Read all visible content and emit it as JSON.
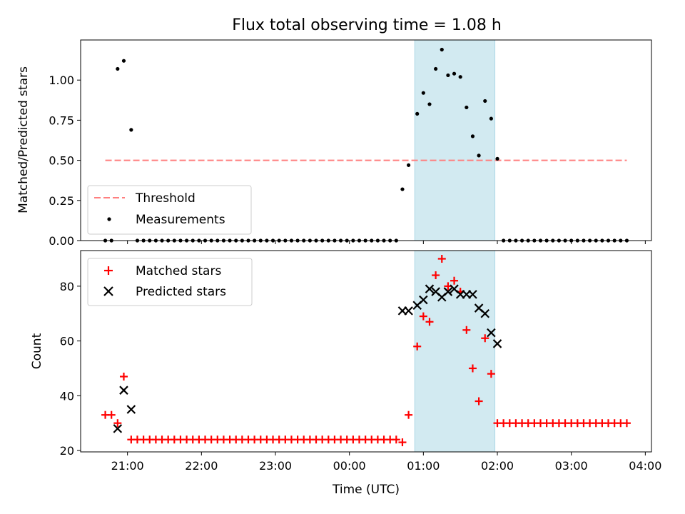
{
  "title": "Flux total observing time = 1.08 h",
  "colors": {
    "threshold": "#ff7f7f",
    "measurements": "#000000",
    "matched": "#ff0000",
    "predicted": "#000000",
    "shade": "#add8e6"
  },
  "chart_data": [
    {
      "type": "scatter",
      "ylabel": "Matched/Predicted stars",
      "ylim": [
        0,
        1.25
      ],
      "yticks": [
        0.0,
        0.25,
        0.5,
        0.75,
        1.0
      ],
      "ytick_labels": [
        "0.00",
        "0.25",
        "0.50",
        "0.75",
        "1.00"
      ],
      "legend_position": "lower-left",
      "threshold": {
        "name": "Threshold",
        "value": 0.5,
        "x_range": [
          "20:42",
          "03:45"
        ]
      },
      "shaded_interval": [
        "00:53",
        "01:58"
      ],
      "series": [
        {
          "name": "Measurements",
          "points": [
            [
              "20:42",
              0.0
            ],
            [
              "20:47",
              0.0
            ],
            [
              "20:52",
              1.07
            ],
            [
              "20:57",
              1.12
            ],
            [
              "21:03",
              0.69
            ],
            [
              "21:08",
              0.0
            ],
            [
              "21:13",
              0.0
            ],
            [
              "21:18",
              0.0
            ],
            [
              "21:23",
              0.0
            ],
            [
              "21:28",
              0.0
            ],
            [
              "21:33",
              0.0
            ],
            [
              "21:38",
              0.0
            ],
            [
              "21:43",
              0.0
            ],
            [
              "21:48",
              0.0
            ],
            [
              "21:53",
              0.0
            ],
            [
              "21:58",
              0.0
            ],
            [
              "22:03",
              0.0
            ],
            [
              "22:08",
              0.0
            ],
            [
              "22:13",
              0.0
            ],
            [
              "22:18",
              0.0
            ],
            [
              "22:23",
              0.0
            ],
            [
              "22:28",
              0.0
            ],
            [
              "22:33",
              0.0
            ],
            [
              "22:38",
              0.0
            ],
            [
              "22:43",
              0.0
            ],
            [
              "22:48",
              0.0
            ],
            [
              "22:53",
              0.0
            ],
            [
              "22:58",
              0.0
            ],
            [
              "23:03",
              0.0
            ],
            [
              "23:08",
              0.0
            ],
            [
              "23:13",
              0.0
            ],
            [
              "23:18",
              0.0
            ],
            [
              "23:23",
              0.0
            ],
            [
              "23:28",
              0.0
            ],
            [
              "23:33",
              0.0
            ],
            [
              "23:38",
              0.0
            ],
            [
              "23:43",
              0.0
            ],
            [
              "23:48",
              0.0
            ],
            [
              "23:53",
              0.0
            ],
            [
              "23:58",
              0.0
            ],
            [
              "00:03",
              0.0
            ],
            [
              "00:08",
              0.0
            ],
            [
              "00:13",
              0.0
            ],
            [
              "00:18",
              0.0
            ],
            [
              "00:23",
              0.0
            ],
            [
              "00:28",
              0.0
            ],
            [
              "00:33",
              0.0
            ],
            [
              "00:38",
              0.0
            ],
            [
              "00:43",
              0.32
            ],
            [
              "00:48",
              0.47
            ],
            [
              "00:55",
              0.79
            ],
            [
              "01:00",
              0.92
            ],
            [
              "01:05",
              0.85
            ],
            [
              "01:10",
              1.07
            ],
            [
              "01:15",
              1.19
            ],
            [
              "01:20",
              1.03
            ],
            [
              "01:25",
              1.04
            ],
            [
              "01:30",
              1.02
            ],
            [
              "01:35",
              0.83
            ],
            [
              "01:40",
              0.65
            ],
            [
              "01:45",
              0.53
            ],
            [
              "01:50",
              0.87
            ],
            [
              "01:55",
              0.76
            ],
            [
              "02:00",
              0.51
            ],
            [
              "02:05",
              0.0
            ],
            [
              "02:10",
              0.0
            ],
            [
              "02:15",
              0.0
            ],
            [
              "02:20",
              0.0
            ],
            [
              "02:25",
              0.0
            ],
            [
              "02:30",
              0.0
            ],
            [
              "02:35",
              0.0
            ],
            [
              "02:40",
              0.0
            ],
            [
              "02:45",
              0.0
            ],
            [
              "02:50",
              0.0
            ],
            [
              "02:55",
              0.0
            ],
            [
              "03:00",
              0.0
            ],
            [
              "03:05",
              0.0
            ],
            [
              "03:10",
              0.0
            ],
            [
              "03:15",
              0.0
            ],
            [
              "03:20",
              0.0
            ],
            [
              "03:25",
              0.0
            ],
            [
              "03:30",
              0.0
            ],
            [
              "03:35",
              0.0
            ],
            [
              "03:40",
              0.0
            ],
            [
              "03:45",
              0.0
            ]
          ]
        }
      ]
    },
    {
      "type": "scatter",
      "xlabel": "Time (UTC)",
      "ylabel": "Count",
      "ylim": [
        19.5,
        93
      ],
      "yticks": [
        20,
        40,
        60,
        80
      ],
      "ytick_labels": [
        "20",
        "40",
        "60",
        "80"
      ],
      "xlim": [
        "20:22",
        "04:05"
      ],
      "xticks": [
        "21:00",
        "22:00",
        "23:00",
        "00:00",
        "01:00",
        "02:00",
        "03:00",
        "04:00"
      ],
      "legend_position": "upper-left",
      "shaded_interval": [
        "00:53",
        "01:58"
      ],
      "series": [
        {
          "name": "Matched stars",
          "points": [
            [
              "20:42",
              33
            ],
            [
              "20:47",
              33
            ],
            [
              "20:52",
              30
            ],
            [
              "20:57",
              47
            ],
            [
              "21:03",
              24
            ],
            [
              "21:08",
              24
            ],
            [
              "21:13",
              24
            ],
            [
              "21:18",
              24
            ],
            [
              "21:23",
              24
            ],
            [
              "21:28",
              24
            ],
            [
              "21:33",
              24
            ],
            [
              "21:38",
              24
            ],
            [
              "21:43",
              24
            ],
            [
              "21:48",
              24
            ],
            [
              "21:53",
              24
            ],
            [
              "21:58",
              24
            ],
            [
              "22:03",
              24
            ],
            [
              "22:08",
              24
            ],
            [
              "22:13",
              24
            ],
            [
              "22:18",
              24
            ],
            [
              "22:23",
              24
            ],
            [
              "22:28",
              24
            ],
            [
              "22:33",
              24
            ],
            [
              "22:38",
              24
            ],
            [
              "22:43",
              24
            ],
            [
              "22:48",
              24
            ],
            [
              "22:53",
              24
            ],
            [
              "22:58",
              24
            ],
            [
              "23:03",
              24
            ],
            [
              "23:08",
              24
            ],
            [
              "23:13",
              24
            ],
            [
              "23:18",
              24
            ],
            [
              "23:23",
              24
            ],
            [
              "23:28",
              24
            ],
            [
              "23:33",
              24
            ],
            [
              "23:38",
              24
            ],
            [
              "23:43",
              24
            ],
            [
              "23:48",
              24
            ],
            [
              "23:53",
              24
            ],
            [
              "23:58",
              24
            ],
            [
              "00:03",
              24
            ],
            [
              "00:08",
              24
            ],
            [
              "00:13",
              24
            ],
            [
              "00:18",
              24
            ],
            [
              "00:23",
              24
            ],
            [
              "00:28",
              24
            ],
            [
              "00:33",
              24
            ],
            [
              "00:38",
              24
            ],
            [
              "00:43",
              23
            ],
            [
              "00:48",
              33
            ],
            [
              "00:55",
              58
            ],
            [
              "01:00",
              69
            ],
            [
              "01:05",
              67
            ],
            [
              "01:10",
              84
            ],
            [
              "01:15",
              90
            ],
            [
              "01:20",
              80
            ],
            [
              "01:25",
              82
            ],
            [
              "01:30",
              78
            ],
            [
              "01:35",
              64
            ],
            [
              "01:40",
              50
            ],
            [
              "01:45",
              38
            ],
            [
              "01:50",
              61
            ],
            [
              "01:55",
              48
            ],
            [
              "02:00",
              30
            ],
            [
              "02:05",
              30
            ],
            [
              "02:10",
              30
            ],
            [
              "02:15",
              30
            ],
            [
              "02:20",
              30
            ],
            [
              "02:25",
              30
            ],
            [
              "02:30",
              30
            ],
            [
              "02:35",
              30
            ],
            [
              "02:40",
              30
            ],
            [
              "02:45",
              30
            ],
            [
              "02:50",
              30
            ],
            [
              "02:55",
              30
            ],
            [
              "03:00",
              30
            ],
            [
              "03:05",
              30
            ],
            [
              "03:10",
              30
            ],
            [
              "03:15",
              30
            ],
            [
              "03:20",
              30
            ],
            [
              "03:25",
              30
            ],
            [
              "03:30",
              30
            ],
            [
              "03:35",
              30
            ],
            [
              "03:40",
              30
            ],
            [
              "03:45",
              30
            ]
          ]
        },
        {
          "name": "Predicted stars",
          "points": [
            [
              "20:52",
              28
            ],
            [
              "20:57",
              42
            ],
            [
              "21:03",
              35
            ],
            [
              "00:43",
              71
            ],
            [
              "00:48",
              71
            ],
            [
              "00:55",
              73
            ],
            [
              "01:00",
              75
            ],
            [
              "01:05",
              79
            ],
            [
              "01:10",
              78
            ],
            [
              "01:15",
              76
            ],
            [
              "01:20",
              78
            ],
            [
              "01:25",
              79
            ],
            [
              "01:30",
              77
            ],
            [
              "01:35",
              77
            ],
            [
              "01:40",
              77
            ],
            [
              "01:45",
              72
            ],
            [
              "01:50",
              70
            ],
            [
              "01:55",
              63
            ],
            [
              "02:00",
              59
            ]
          ]
        }
      ]
    }
  ]
}
